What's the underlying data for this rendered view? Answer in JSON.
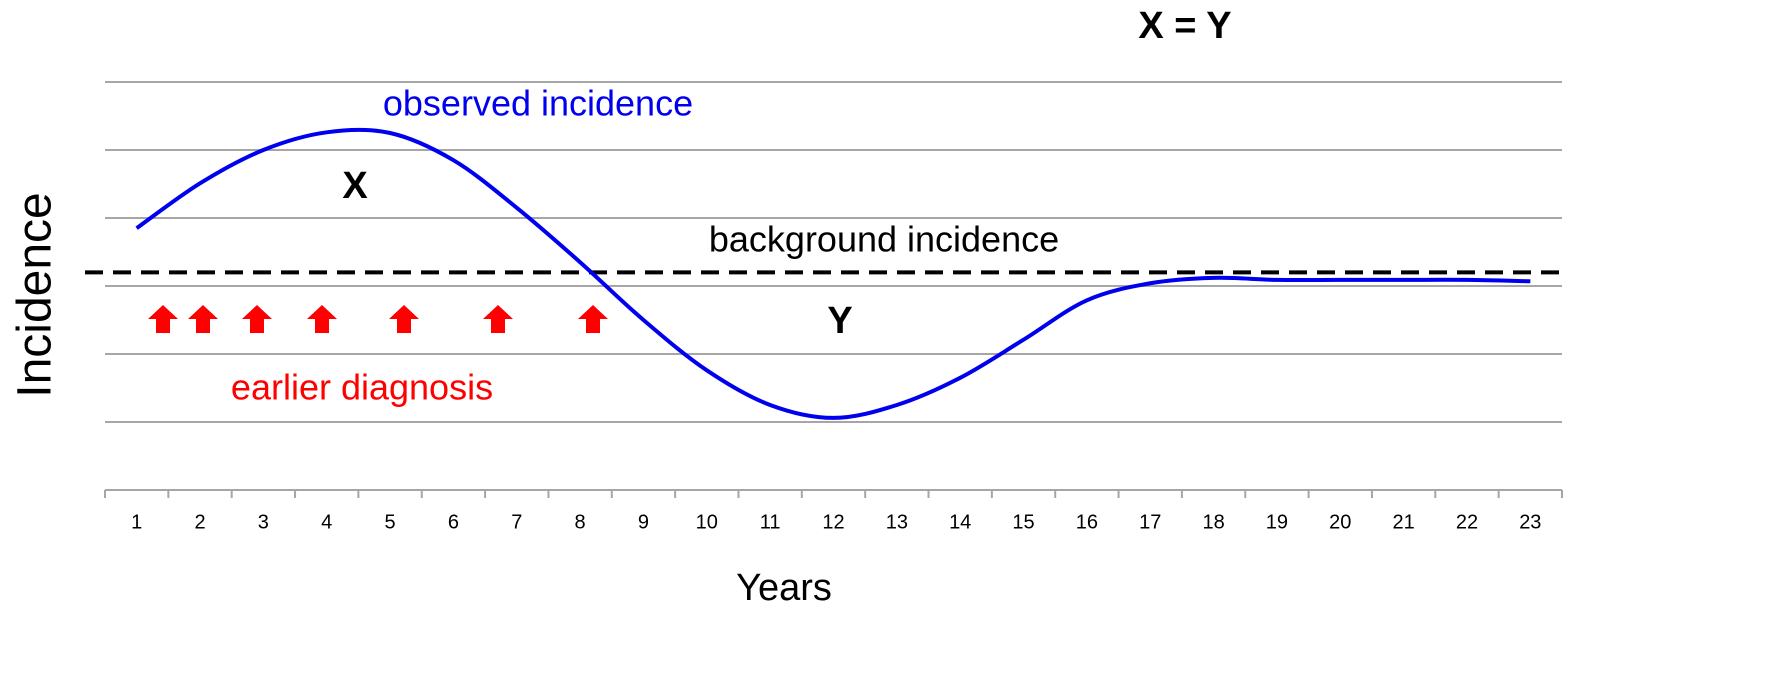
{
  "chart_data": {
    "type": "line",
    "xlabel": "Years",
    "ylabel": "Incidence",
    "categories": [
      "1",
      "2",
      "3",
      "4",
      "5",
      "6",
      "7",
      "8",
      "9",
      "10",
      "11",
      "12",
      "13",
      "14",
      "15",
      "16",
      "17",
      "18",
      "19",
      "20",
      "21",
      "22",
      "23"
    ],
    "series": [
      {
        "name": "observed incidence",
        "color": "#0000ee",
        "values": [
          3.85,
          4.51,
          5.0,
          5.26,
          5.25,
          4.85,
          4.15,
          3.35,
          2.5,
          1.76,
          1.25,
          1.06,
          1.25,
          1.65,
          2.21,
          2.79,
          3.04,
          3.12,
          3.09,
          3.09,
          3.09,
          3.09,
          3.07
        ]
      }
    ],
    "reference_line": {
      "label": "background incidence",
      "value": 3.2,
      "color": "#000000"
    },
    "annotations": {
      "above": "X",
      "below": "Y",
      "arrows": "earlier diagnosis",
      "equation": "X = Y"
    },
    "ylim": [
      0,
      6
    ],
    "yticks": [
      0,
      1,
      2,
      3,
      4,
      5,
      6
    ],
    "grid": true
  }
}
